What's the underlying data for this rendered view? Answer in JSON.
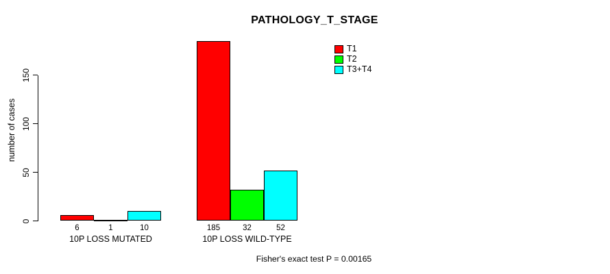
{
  "chart_data": {
    "type": "bar",
    "title": "PATHOLOGY_T_STAGE",
    "ylabel": "number of cases",
    "xlabel": "",
    "categories": [
      "10P LOSS MUTATED",
      "10P LOSS WILD-TYPE"
    ],
    "series": [
      {
        "name": "T1",
        "color": "#ff0000",
        "values": [
          6,
          185
        ]
      },
      {
        "name": "T2",
        "color": "#00ff00",
        "values": [
          1,
          32
        ]
      },
      {
        "name": "T3+T4",
        "color": "#00ffff",
        "values": [
          10,
          52
        ]
      }
    ],
    "ylim": [
      0,
      150
    ],
    "yticks": [
      0,
      50,
      100,
      150
    ],
    "grid": false,
    "legend_position": "top-right",
    "bar_value_labels": [
      [
        "6",
        "1",
        "10"
      ],
      [
        "185",
        "32",
        "52"
      ]
    ],
    "bar_border_color": "#000000"
  },
  "annotation": "Fisher's exact test P = 0.00165",
  "colors": {
    "background": "#ffffff",
    "text": "#000000",
    "axis": "#000000"
  }
}
